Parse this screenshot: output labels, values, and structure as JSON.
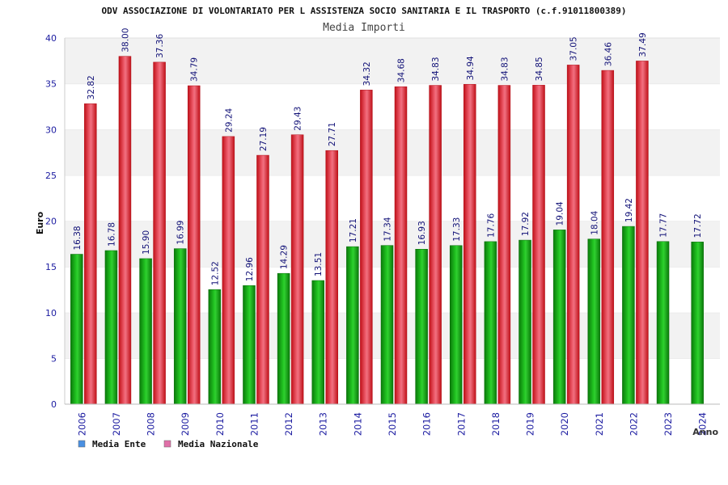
{
  "chart_data": {
    "type": "bar",
    "title": "ODV ASSOCIAZIONE DI VOLONTARIATO PER L ASSISTENZA SOCIO SANITARIA E IL TRASPORTO (c.f.91011800389)",
    "subtitle": "Media Importi",
    "xlabel": "Anno",
    "ylabel": "Euro",
    "ylim": [
      0,
      40
    ],
    "yticks": [
      "0",
      "5",
      "10",
      "15",
      "20",
      "25",
      "30",
      "35",
      "40"
    ],
    "grid": true,
    "legend_position": "bottom-left",
    "categories": [
      "2006",
      "2007",
      "2008",
      "2009",
      "2010",
      "2011",
      "2012",
      "2013",
      "2014",
      "2015",
      "2016",
      "2017",
      "2018",
      "2019",
      "2020",
      "2021",
      "2022",
      "2023",
      "2024"
    ],
    "series": [
      {
        "name": "Media Ente",
        "color": "#1faa1f",
        "legend_color": "#4a90e2",
        "values": [
          16.38,
          16.78,
          15.9,
          16.99,
          12.52,
          12.96,
          14.29,
          13.51,
          17.21,
          17.34,
          16.93,
          17.33,
          17.76,
          17.92,
          19.04,
          18.04,
          19.42,
          17.77,
          17.72
        ],
        "labels": [
          "16.38",
          "16.78",
          "15.90",
          "16.99",
          "12.52",
          "12.96",
          "14.29",
          "13.51",
          "17.21",
          "17.34",
          "16.93",
          "17.33",
          "17.76",
          "17.92",
          "19.04",
          "18.04",
          "19.42",
          "17.77",
          "17.72"
        ]
      },
      {
        "name": "Media Nazionale",
        "color": "#e8202a",
        "legend_color": "#e070a8",
        "values": [
          32.82,
          38.0,
          37.36,
          34.79,
          29.24,
          27.19,
          29.43,
          27.71,
          34.32,
          34.68,
          34.83,
          34.94,
          34.83,
          34.85,
          37.05,
          36.46,
          37.49,
          null,
          null
        ],
        "labels": [
          "32.82",
          "38.00",
          "37.36",
          "34.79",
          "29.24",
          "27.19",
          "29.43",
          "27.71",
          "34.32",
          "34.68",
          "34.83",
          "34.94",
          "34.83",
          "34.85",
          "37.05",
          "36.46",
          "37.49",
          "",
          ""
        ]
      }
    ]
  }
}
